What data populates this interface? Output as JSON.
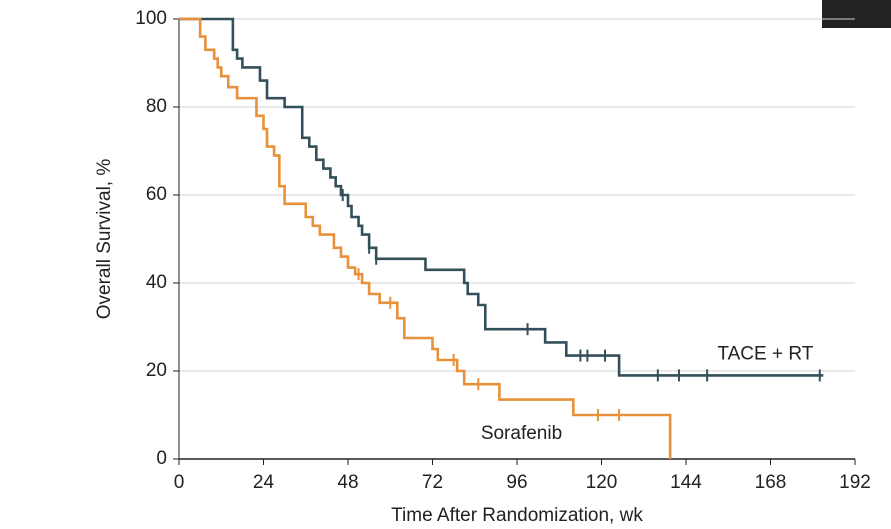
{
  "chart_data": {
    "type": "step",
    "xlabel": "Time After Randomization, wk",
    "ylabel": "Overall Survival, %",
    "xlim": [
      0,
      192
    ],
    "xticks": [
      0,
      24,
      48,
      72,
      96,
      120,
      144,
      168,
      192
    ],
    "ylim": [
      0,
      100
    ],
    "yticks": [
      0,
      20,
      40,
      60,
      80,
      100
    ],
    "grid": true,
    "series": [
      {
        "name": "TACE + RT",
        "color": "#33505a",
        "x": [
          0,
          15.3,
          16.5,
          18,
          23,
          25,
          30,
          35,
          37,
          39,
          41,
          43,
          44.5,
          46,
          48,
          49,
          51,
          52,
          54,
          56,
          70,
          81,
          82,
          85,
          87,
          104,
          110,
          125,
          183
        ],
        "values": [
          100,
          93,
          91,
          89,
          86,
          82,
          80,
          73,
          71,
          68,
          66,
          64,
          62,
          60,
          57.5,
          55,
          53,
          51,
          48,
          45.5,
          43,
          40,
          37.5,
          35,
          29.5,
          26.5,
          23.5,
          19,
          19
        ],
        "censor_x": [
          46.5,
          54,
          56,
          99,
          114,
          116,
          121,
          136,
          142,
          150,
          182
        ],
        "censor_values": [
          60,
          48,
          45.5,
          29.5,
          23.5,
          23.5,
          23.5,
          19,
          19,
          19,
          19
        ]
      },
      {
        "name": "Sorafenib",
        "color": "#e8913a",
        "x": [
          0,
          6,
          7.5,
          10,
          11,
          12,
          14,
          16.5,
          22,
          24,
          25,
          27,
          28.5,
          30,
          36,
          38,
          40,
          44,
          46,
          48,
          50,
          52,
          54,
          57,
          62,
          64,
          72,
          73.5,
          79,
          81,
          91,
          112,
          139.5
        ],
        "values": [
          100,
          96,
          93,
          91,
          89,
          87,
          84.5,
          82,
          78,
          75,
          71,
          69,
          62,
          58,
          55,
          53,
          51,
          48,
          46,
          43.5,
          42,
          40,
          37.5,
          35.5,
          32,
          27.5,
          25,
          22.5,
          20,
          17,
          13.5,
          10,
          0
        ],
        "censor_x": [
          51,
          60,
          78,
          85,
          119,
          125
        ],
        "censor_values": [
          42,
          35.5,
          22.5,
          17,
          10,
          10
        ]
      }
    ]
  }
}
